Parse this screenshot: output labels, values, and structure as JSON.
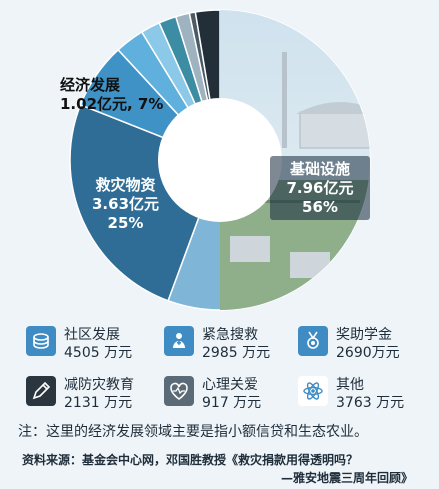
{
  "chart_data": {
    "type": "pie",
    "unit": "亿元",
    "slices": [
      {
        "category": "基础设施",
        "value": 7.96,
        "percent": 56,
        "value_label": "7.96亿元",
        "percent_label": "56%",
        "color": "#7fb6d8"
      },
      {
        "category": "救灾物资",
        "value": 3.63,
        "percent": 25,
        "value_label": "3.63亿元",
        "percent_label": "25%",
        "color": "#2f6d96"
      },
      {
        "category": "经济发展",
        "value": 1.02,
        "percent": 7,
        "value_label": "1.02亿元, 7%",
        "color": "#3f92c6"
      },
      {
        "category": "社区发展",
        "value": 0.4505,
        "color": "#5fb0dc"
      },
      {
        "category": "紧急搜救",
        "value": 0.2985,
        "color": "#8cc8e8"
      },
      {
        "category": "奖助学金",
        "value": 0.269,
        "color": "#3c8da3"
      },
      {
        "category": "减防灾教育",
        "value": 0.2131,
        "color": "#9fb2c0"
      },
      {
        "category": "心理关爱",
        "value": 0.0917,
        "color": "#4a5a66"
      },
      {
        "category": "其他",
        "value": 0.3763,
        "color": "#222e38"
      }
    ],
    "categories_legend": [
      {
        "name": "社区发展",
        "amount": "4505 万元",
        "icon": "coins-icon"
      },
      {
        "name": "紧急搜救",
        "amount": "2985 万元",
        "icon": "rescue-icon"
      },
      {
        "name": "奖助学金",
        "amount": "2690万元",
        "icon": "medal-icon"
      },
      {
        "name": "减防灾教育",
        "amount": "2131 万元",
        "icon": "pencil-icon"
      },
      {
        "name": "心理关爱",
        "amount": "917 万元",
        "icon": "heart-pulse-icon"
      },
      {
        "name": "其他",
        "amount": "3763 万元",
        "icon": "atom-icon"
      }
    ]
  },
  "labels": {
    "econ_line1": "经济发展",
    "econ_line2": "1.02亿元, 7%",
    "relief_line1": "救灾物资",
    "relief_line2": "3.63亿元",
    "relief_line3": "25%",
    "infra_line1": "基础设施",
    "infra_line2": "7.96亿元",
    "infra_line3": "56%"
  },
  "note": "注：这里的经济发展领域主要是指小额信贷和生态农业。",
  "source_line1": "资料来源：基金会中心网，邓国胜教授《救灾捐款用得透明吗？",
  "source_line2": "—雅安地震三周年回顾》",
  "colors": {
    "icon_bg": "#3f8bc4",
    "page_bg": "#eef4f8"
  }
}
